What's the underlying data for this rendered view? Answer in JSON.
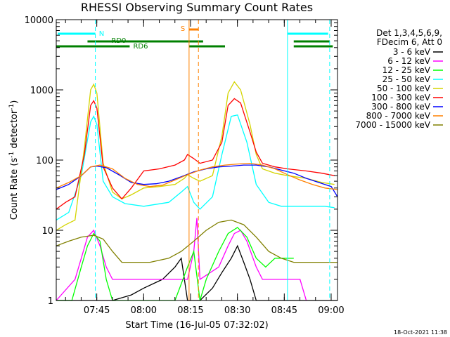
{
  "chart_data": {
    "type": "line",
    "title": "RHESSI Observing Summary Count Rates",
    "xlabel": "Start Time (16-Jul-05 07:32:02)",
    "ylabel": "Count Rate (s",
    "ylabel_sup1": "-1",
    "ylabel_mid": " detector",
    "ylabel_sup2": "-1",
    "ylabel_end": ")",
    "yscale": "log",
    "ylim": [
      1,
      10000
    ],
    "xlim_minutes": [
      0,
      90
    ],
    "x_ticks": [
      {
        "label": "07:45",
        "minute": 12.97
      },
      {
        "label": "08:00",
        "minute": 27.97
      },
      {
        "label": "08:15",
        "minute": 42.97
      },
      {
        "label": "08:30",
        "minute": 57.97
      },
      {
        "label": "08:45",
        "minute": 72.97
      },
      {
        "label": "09:00",
        "minute": 87.97
      }
    ],
    "y_ticks": [
      {
        "label": "1",
        "value": 1
      },
      {
        "label": "10",
        "value": 10
      },
      {
        "label": "100",
        "value": 100
      },
      {
        "label": "1000",
        "value": 1000
      },
      {
        "label": "10000",
        "value": 10000
      }
    ],
    "legend_header": [
      "Det 1,3,4,5,6,9,",
      "FDecim 6, Att 0"
    ],
    "series": [
      {
        "name": "3 - 6 keV",
        "color": "#000000",
        "points": [
          [
            0,
            1
          ],
          [
            18,
            1
          ],
          [
            24,
            1.2
          ],
          [
            28,
            1.5
          ],
          [
            34,
            2
          ],
          [
            38,
            3
          ],
          [
            40,
            4
          ],
          [
            42,
            1
          ],
          [
            46,
            1
          ],
          [
            50,
            1.5
          ],
          [
            53,
            2.5
          ],
          [
            56,
            4
          ],
          [
            58,
            6
          ],
          [
            60,
            3.5
          ],
          [
            62,
            2
          ],
          [
            64,
            1
          ],
          [
            90,
            1
          ]
        ]
      },
      {
        "name": "6 - 12 keV",
        "color": "#ff00ff",
        "points": [
          [
            0,
            1
          ],
          [
            6,
            2
          ],
          [
            8,
            4
          ],
          [
            10,
            8
          ],
          [
            12,
            10
          ],
          [
            14,
            6
          ],
          [
            16,
            3
          ],
          [
            18,
            2
          ],
          [
            22,
            2
          ],
          [
            42,
            2
          ],
          [
            44,
            5
          ],
          [
            45,
            15
          ],
          [
            46,
            2
          ],
          [
            52,
            3
          ],
          [
            55,
            6
          ],
          [
            57,
            9
          ],
          [
            59,
            10
          ],
          [
            61,
            7
          ],
          [
            64,
            3
          ],
          [
            66,
            2
          ],
          [
            78,
            2
          ],
          [
            80,
            1
          ]
        ]
      },
      {
        "name": "12 - 25 keV",
        "color": "#00ff00",
        "points": [
          [
            0,
            1
          ],
          [
            5,
            1
          ],
          [
            8,
            3
          ],
          [
            10,
            6
          ],
          [
            12,
            9
          ],
          [
            14,
            7
          ],
          [
            16,
            2
          ],
          [
            18,
            1
          ],
          [
            38,
            1
          ],
          [
            42,
            3
          ],
          [
            44,
            5
          ],
          [
            46,
            1
          ],
          [
            48,
            2
          ],
          [
            52,
            5
          ],
          [
            55,
            9
          ],
          [
            58,
            11
          ],
          [
            61,
            8
          ],
          [
            64,
            4
          ],
          [
            67,
            3
          ],
          [
            70,
            4
          ],
          [
            76,
            4
          ]
        ]
      },
      {
        "name": "25 - 50 keV",
        "color": "#00ffff",
        "points": [
          [
            0,
            14
          ],
          [
            4,
            18
          ],
          [
            8,
            60
          ],
          [
            11,
            350
          ],
          [
            12,
            420
          ],
          [
            13,
            320
          ],
          [
            15,
            50
          ],
          [
            18,
            30
          ],
          [
            22,
            24
          ],
          [
            28,
            22
          ],
          [
            36,
            25
          ],
          [
            40,
            35
          ],
          [
            42,
            42
          ],
          [
            44,
            25
          ],
          [
            46,
            20
          ],
          [
            50,
            30
          ],
          [
            53,
            120
          ],
          [
            56,
            420
          ],
          [
            58,
            440
          ],
          [
            61,
            180
          ],
          [
            64,
            45
          ],
          [
            68,
            25
          ],
          [
            72,
            22
          ],
          [
            80,
            22
          ],
          [
            86,
            22
          ],
          [
            89,
            21
          ]
        ]
      },
      {
        "name": "50 - 100 keV",
        "color": "#d4d400",
        "points": [
          [
            0,
            10
          ],
          [
            3,
            12
          ],
          [
            6,
            14
          ],
          [
            9,
            150
          ],
          [
            11,
            1000
          ],
          [
            12,
            1200
          ],
          [
            13,
            900
          ],
          [
            15,
            90
          ],
          [
            18,
            35
          ],
          [
            21,
            28
          ],
          [
            24,
            32
          ],
          [
            28,
            40
          ],
          [
            33,
            42
          ],
          [
            38,
            45
          ],
          [
            41,
            55
          ],
          [
            42,
            62
          ],
          [
            44,
            55
          ],
          [
            46,
            50
          ],
          [
            50,
            60
          ],
          [
            53,
            220
          ],
          [
            55,
            900
          ],
          [
            57,
            1300
          ],
          [
            59,
            1000
          ],
          [
            62,
            320
          ],
          [
            64,
            120
          ],
          [
            66,
            75
          ],
          [
            70,
            65
          ],
          [
            74,
            60
          ],
          [
            80,
            55
          ],
          [
            85,
            48
          ],
          [
            89,
            45
          ]
        ]
      },
      {
        "name": "100 - 300 keV",
        "color": "#ff0000",
        "points": [
          [
            0,
            20
          ],
          [
            3,
            25
          ],
          [
            6,
            30
          ],
          [
            9,
            120
          ],
          [
            11,
            600
          ],
          [
            12,
            700
          ],
          [
            13,
            550
          ],
          [
            15,
            80
          ],
          [
            18,
            40
          ],
          [
            21,
            28
          ],
          [
            24,
            40
          ],
          [
            28,
            70
          ],
          [
            33,
            75
          ],
          [
            38,
            85
          ],
          [
            41,
            100
          ],
          [
            42,
            120
          ],
          [
            44,
            105
          ],
          [
            46,
            90
          ],
          [
            50,
            100
          ],
          [
            53,
            180
          ],
          [
            55,
            600
          ],
          [
            57,
            750
          ],
          [
            59,
            650
          ],
          [
            62,
            250
          ],
          [
            64,
            130
          ],
          [
            66,
            90
          ],
          [
            70,
            80
          ],
          [
            74,
            75
          ],
          [
            80,
            70
          ],
          [
            85,
            65
          ],
          [
            89,
            60
          ]
        ]
      },
      {
        "name": "300 - 800 keV",
        "color": "#0000ff",
        "points": [
          [
            0,
            38
          ],
          [
            4,
            45
          ],
          [
            8,
            60
          ],
          [
            11,
            80
          ],
          [
            13,
            82
          ],
          [
            16,
            78
          ],
          [
            20,
            62
          ],
          [
            24,
            48
          ],
          [
            28,
            45
          ],
          [
            32,
            46
          ],
          [
            36,
            50
          ],
          [
            40,
            58
          ],
          [
            44,
            68
          ],
          [
            48,
            75
          ],
          [
            52,
            80
          ],
          [
            56,
            82
          ],
          [
            60,
            85
          ],
          [
            64,
            85
          ],
          [
            68,
            80
          ],
          [
            72,
            72
          ],
          [
            76,
            65
          ],
          [
            80,
            55
          ],
          [
            84,
            48
          ],
          [
            88,
            42
          ],
          [
            90,
            30
          ]
        ]
      },
      {
        "name": "800 - 7000 keV",
        "color": "#ff8000",
        "points": [
          [
            0,
            40
          ],
          [
            4,
            48
          ],
          [
            8,
            60
          ],
          [
            11,
            80
          ],
          [
            14,
            85
          ],
          [
            18,
            75
          ],
          [
            22,
            55
          ],
          [
            26,
            45
          ],
          [
            30,
            42
          ],
          [
            34,
            44
          ],
          [
            38,
            52
          ],
          [
            42,
            62
          ],
          [
            46,
            72
          ],
          [
            50,
            80
          ],
          [
            54,
            85
          ],
          [
            58,
            88
          ],
          [
            62,
            90
          ],
          [
            66,
            85
          ],
          [
            70,
            75
          ],
          [
            74,
            62
          ],
          [
            78,
            52
          ],
          [
            82,
            45
          ],
          [
            86,
            40
          ],
          [
            90,
            38
          ]
        ]
      },
      {
        "name": "7000 - 15000 keV",
        "color": "#808000",
        "points": [
          [
            0,
            6
          ],
          [
            4,
            7
          ],
          [
            8,
            8
          ],
          [
            12,
            8.5
          ],
          [
            15,
            7.5
          ],
          [
            18,
            5
          ],
          [
            21,
            3.5
          ],
          [
            24,
            3.5
          ],
          [
            30,
            3.5
          ],
          [
            36,
            4
          ],
          [
            40,
            5
          ],
          [
            44,
            7
          ],
          [
            48,
            10
          ],
          [
            52,
            13
          ],
          [
            56,
            14
          ],
          [
            60,
            12
          ],
          [
            64,
            8
          ],
          [
            68,
            5
          ],
          [
            72,
            4
          ],
          [
            76,
            3.5
          ],
          [
            82,
            3.5
          ],
          [
            86,
            3.5
          ],
          [
            90,
            3.5
          ]
        ]
      }
    ],
    "markers": [
      {
        "label": "N",
        "color": "#00ffff"
      },
      {
        "label": "RD0",
        "color": "#008000"
      },
      {
        "label": "RD6",
        "color": "#008000"
      },
      {
        "label": "S",
        "color": "#ff8000"
      }
    ],
    "timestamp": "18-Oct-2021 11:38"
  }
}
